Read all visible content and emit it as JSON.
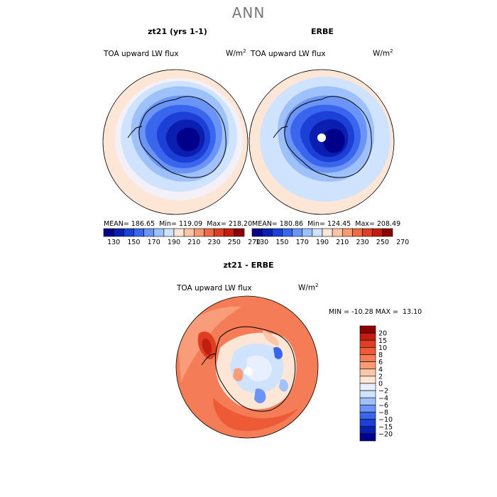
{
  "page_title": "ANN",
  "panels": [
    {
      "title": "zt21 (yrs 1-1)",
      "variable": "TOA upward LW flux",
      "units_base": "W/m",
      "units_exp": "2",
      "stats": {
        "mean_label": "MEAN=",
        "mean": "186.65",
        "min_label": "Min=",
        "min": "119.09",
        "max_label": "Max=",
        "max": "218.20"
      }
    },
    {
      "title": "ERBE",
      "variable": "TOA upward LW flux",
      "units_base": "W/m",
      "units_exp": "2",
      "stats": {
        "mean_label": "MEAN=",
        "mean": "180.86",
        "min_label": "Min=",
        "min": "124.45",
        "max_label": "Max=",
        "max": "208.49"
      }
    },
    {
      "title": "zt21 - ERBE",
      "variable": "TOA upward LW flux",
      "units_base": "W/m",
      "units_exp": "2",
      "minmax_text": "MIN = -10.28 MAX =  13.10"
    }
  ],
  "colorbar_top": {
    "labels": [
      "130",
      "150",
      "170",
      "190",
      "210",
      "230",
      "250",
      "270"
    ],
    "colors": [
      "#00008b",
      "#0a1fb0",
      "#1c3fd6",
      "#3a66ee",
      "#6a94f5",
      "#9ec0fb",
      "#cfe3ff",
      "#fde6d6",
      "#fbc5a8",
      "#f79a74",
      "#ee6a46",
      "#de3f22",
      "#c21e0f",
      "#8b0000"
    ]
  },
  "colorbar_diff": {
    "labels": [
      "20",
      "15",
      "10",
      "8",
      "6",
      "4",
      "2",
      "0",
      "-2",
      "-4",
      "-6",
      "-8",
      "-10",
      "-15",
      "-20"
    ],
    "colors": [
      "#8b0000",
      "#c21e0f",
      "#de3f22",
      "#ee5a36",
      "#f47c56",
      "#f89c7a",
      "#fbc5a8",
      "#fde6d6",
      "#e8f0ff",
      "#cfe3ff",
      "#9ec0fb",
      "#6a94f5",
      "#3a66ee",
      "#1c3fd6",
      "#0a1fb0",
      "#00008b"
    ]
  },
  "chart_data": [
    {
      "type": "heatmap",
      "title": "zt21 (yrs 1-1)",
      "subtitle": "TOA upward LW flux",
      "units": "W/m2",
      "mean": 186.65,
      "min": 119.09,
      "max": 218.2,
      "levels": [
        130,
        150,
        170,
        190,
        210,
        230,
        250,
        270
      ]
    },
    {
      "type": "heatmap",
      "title": "ERBE",
      "subtitle": "TOA upward LW flux",
      "units": "W/m2",
      "mean": 180.86,
      "min": 124.45,
      "max": 208.49,
      "levels": [
        130,
        150,
        170,
        190,
        210,
        230,
        250,
        270
      ]
    },
    {
      "type": "heatmap",
      "title": "zt21 - ERBE",
      "subtitle": "TOA upward LW flux",
      "units": "W/m2",
      "min": -10.28,
      "max": 13.1,
      "levels": [
        -20,
        -15,
        -10,
        -8,
        -6,
        -4,
        -2,
        0,
        2,
        4,
        6,
        8,
        10,
        15,
        20
      ]
    }
  ]
}
